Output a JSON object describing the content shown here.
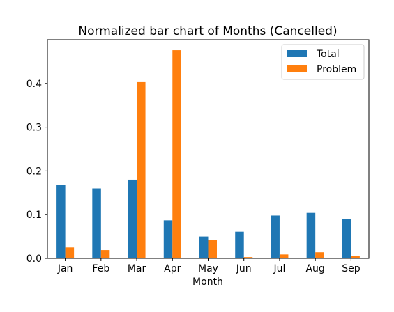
{
  "chart_data": {
    "type": "bar",
    "title": "Normalized bar chart of Months (Cancelled)",
    "xlabel": "Month",
    "ylabel": "",
    "categories": [
      "Jan",
      "Feb",
      "Mar",
      "Apr",
      "May",
      "Jun",
      "Jul",
      "Aug",
      "Sep"
    ],
    "series": [
      {
        "name": "Total",
        "color": "#1f77b4",
        "values": [
          0.168,
          0.16,
          0.18,
          0.087,
          0.05,
          0.061,
          0.098,
          0.104,
          0.09
        ]
      },
      {
        "name": "Problem",
        "color": "#ff7f0e",
        "values": [
          0.025,
          0.019,
          0.403,
          0.476,
          0.042,
          0.003,
          0.009,
          0.014,
          0.006
        ]
      }
    ],
    "ylim": [
      0,
      0.5
    ],
    "yticks": [
      "0.0",
      "0.1",
      "0.2",
      "0.3",
      "0.4"
    ],
    "grid": false,
    "legend_position": "top-right"
  }
}
